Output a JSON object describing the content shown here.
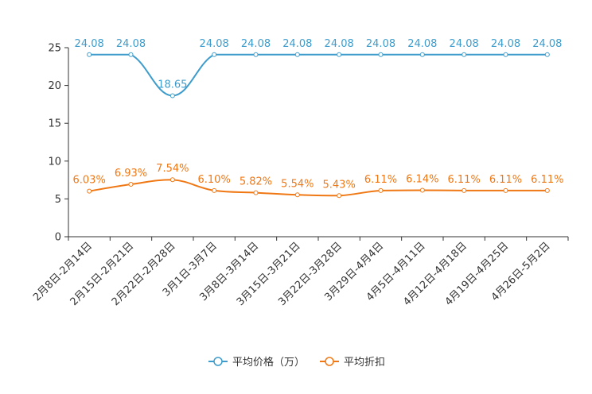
{
  "chart_data": {
    "type": "line",
    "title": "",
    "xlabel": "",
    "ylabel": "",
    "ylim": [
      0,
      25
    ],
    "yticks": [
      0,
      5,
      10,
      15,
      20,
      25
    ],
    "grid": false,
    "legend_position": "bottom-center",
    "categories": [
      "2月8日-2月14日",
      "2月15日-2月21日",
      "2月22日-2月28日",
      "3月1日-3月7日",
      "3月8日-3月14日",
      "3月15日-3月21日",
      "3月22日-3月28日",
      "3月29日-4月4日",
      "4月5日-4月11日",
      "4月12日-4月18日",
      "4月19日-4月25日",
      "4月26日-5月2日"
    ],
    "series": [
      {
        "name": "平均价格（万）",
        "color": "#3d9ccc",
        "values": [
          24.08,
          24.08,
          18.65,
          24.08,
          24.08,
          24.08,
          24.08,
          24.08,
          24.08,
          24.08,
          24.08,
          24.08
        ],
        "labels": [
          "24.08",
          "24.08",
          "18.65",
          "24.08",
          "24.08",
          "24.08",
          "24.08",
          "24.08",
          "24.08",
          "24.08",
          "24.08",
          "24.08"
        ]
      },
      {
        "name": "平均折扣",
        "color": "#f07814",
        "values": [
          6.03,
          6.93,
          7.54,
          6.1,
          5.82,
          5.54,
          5.43,
          6.11,
          6.14,
          6.11,
          6.11,
          6.11
        ],
        "labels": [
          "6.03%",
          "6.93%",
          "7.54%",
          "6.10%",
          "5.82%",
          "5.54%",
          "5.43%",
          "6.11%",
          "6.14%",
          "6.11%",
          "6.11%",
          "6.11%"
        ]
      }
    ]
  }
}
